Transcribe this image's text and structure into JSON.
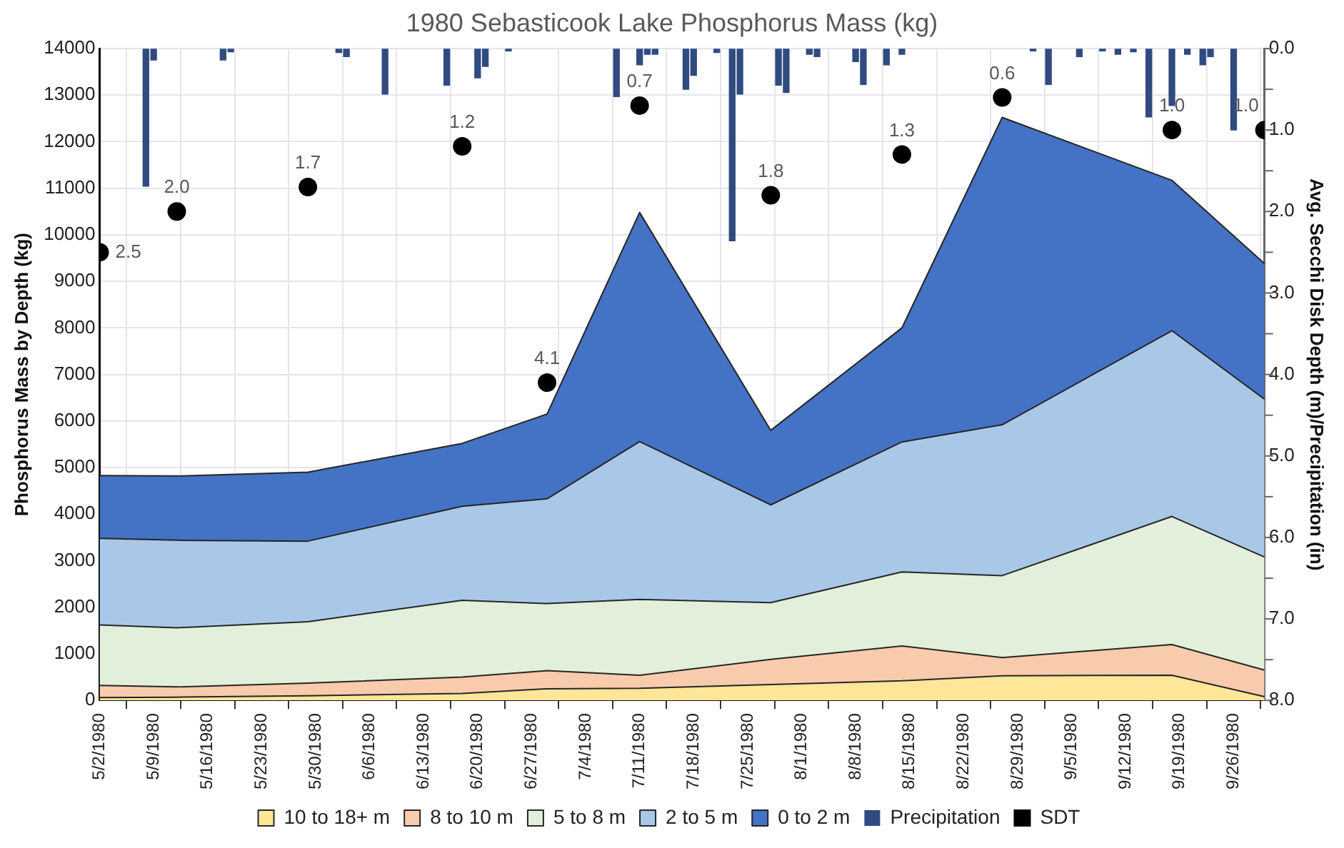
{
  "chart_data": {
    "type": "area",
    "title": "1980 Sebasticook Lake Phosphorus Mass (kg)",
    "ylabel": "Phosphorus Mass by Depth (kg)",
    "y2label": "Avg. Secchi Disk Depth (m)/Precipitation (in)",
    "x": [
      "1980-05-02",
      "1980-05-12",
      "1980-05-29",
      "1980-06-18",
      "1980-06-29",
      "1980-07-11",
      "1980-07-28",
      "1980-08-14",
      "1980-08-27",
      "1980-09-18",
      "1980-09-30"
    ],
    "stacked": true,
    "grid": true,
    "legend": "bottom",
    "xlim": [
      "1980-05-02",
      "1980-09-30"
    ],
    "xticks": [
      {
        "value": "1980-05-02",
        "label": "5/2/1980"
      },
      {
        "value": "1980-05-09",
        "label": "5/9/1980"
      },
      {
        "value": "1980-05-16",
        "label": "5/16/1980"
      },
      {
        "value": "1980-05-23",
        "label": "5/23/1980"
      },
      {
        "value": "1980-05-30",
        "label": "5/30/1980"
      },
      {
        "value": "1980-06-06",
        "label": "6/6/1980"
      },
      {
        "value": "1980-06-13",
        "label": "6/13/1980"
      },
      {
        "value": "1980-06-20",
        "label": "6/20/1980"
      },
      {
        "value": "1980-06-27",
        "label": "6/27/1980"
      },
      {
        "value": "1980-07-04",
        "label": "7/4/1980"
      },
      {
        "value": "1980-07-11",
        "label": "7/11/1980"
      },
      {
        "value": "1980-07-18",
        "label": "7/18/1980"
      },
      {
        "value": "1980-07-25",
        "label": "7/25/1980"
      },
      {
        "value": "1980-08-01",
        "label": "8/1/1980"
      },
      {
        "value": "1980-08-08",
        "label": "8/8/1980"
      },
      {
        "value": "1980-08-15",
        "label": "8/15/1980"
      },
      {
        "value": "1980-08-22",
        "label": "8/22/1980"
      },
      {
        "value": "1980-08-29",
        "label": "8/29/1980"
      },
      {
        "value": "1980-09-05",
        "label": "9/5/1980"
      },
      {
        "value": "1980-09-12",
        "label": "9/12/1980"
      },
      {
        "value": "1980-09-19",
        "label": "9/19/1980"
      },
      {
        "value": "1980-09-26",
        "label": "9/26/1980"
      }
    ],
    "ylim": [
      0,
      14000
    ],
    "yticks": [
      0,
      1000,
      2000,
      3000,
      4000,
      5000,
      6000,
      7000,
      8000,
      9000,
      10000,
      11000,
      12000,
      13000,
      14000
    ],
    "y2lim": [
      8,
      0
    ],
    "y2ticks": [
      {
        "value": 0,
        "label": "0.0"
      },
      {
        "value": 0.5,
        "label": null
      },
      {
        "value": 1,
        "label": "1.0"
      },
      {
        "value": 1.5,
        "label": null
      },
      {
        "value": 2,
        "label": "2.0"
      },
      {
        "value": 2.5,
        "label": null
      },
      {
        "value": 3,
        "label": "3.0"
      },
      {
        "value": 3.5,
        "label": null
      },
      {
        "value": 4,
        "label": "4.0"
      },
      {
        "value": 4.5,
        "label": null
      },
      {
        "value": 5,
        "label": "5.0"
      },
      {
        "value": 5.5,
        "label": null
      },
      {
        "value": 6,
        "label": "6.0"
      },
      {
        "value": 6.5,
        "label": null
      },
      {
        "value": 7,
        "label": "7.0"
      },
      {
        "value": 7.5,
        "label": null
      },
      {
        "value": 8,
        "label": "8.0"
      }
    ],
    "series": [
      {
        "name": "10 to 18+ m",
        "color": "#ffe699",
        "values": [
          60,
          70,
          100,
          150,
          250,
          260,
          340,
          420,
          530,
          540,
          80
        ]
      },
      {
        "name": "8 to 10 m",
        "color": "#f8cbad",
        "values": [
          260,
          220,
          270,
          350,
          390,
          280,
          540,
          750,
          390,
          660,
          570
        ]
      },
      {
        "name": "5 to 8 m",
        "color": "#e2efda",
        "values": [
          1300,
          1270,
          1320,
          1650,
          1440,
          1630,
          1220,
          1590,
          1760,
          2750,
          2430
        ]
      },
      {
        "name": "2 to 5 m",
        "color": "#a9c8e8",
        "values": [
          1860,
          1880,
          1730,
          2020,
          2250,
          3390,
          2100,
          2790,
          3240,
          3990,
          3390
        ]
      },
      {
        "name": "0 to 2 m",
        "color": "#4472c4",
        "values": [
          1350,
          1380,
          1480,
          1350,
          1820,
          4920,
          1600,
          2450,
          6600,
          3230,
          2910
        ]
      },
      {
        "name": "Precipitation",
        "type": "bar",
        "axis": "y2",
        "color": "#2f4b80",
        "x": [
          "1980-05-08",
          "1980-05-09",
          "1980-05-18",
          "1980-05-19",
          "1980-06-02",
          "1980-06-03",
          "1980-06-08",
          "1980-06-16",
          "1980-06-20",
          "1980-06-21",
          "1980-06-24",
          "1980-07-08",
          "1980-07-11",
          "1980-07-12",
          "1980-07-13",
          "1980-07-17",
          "1980-07-18",
          "1980-07-21",
          "1980-07-23",
          "1980-07-24",
          "1980-07-29",
          "1980-07-30",
          "1980-08-02",
          "1980-08-03",
          "1980-08-08",
          "1980-08-09",
          "1980-08-12",
          "1980-08-14",
          "1980-08-31",
          "1980-09-02",
          "1980-09-06",
          "1980-09-09",
          "1980-09-11",
          "1980-09-13",
          "1980-09-15",
          "1980-09-18",
          "1980-09-20",
          "1980-09-22",
          "1980-09-23",
          "1980-09-26"
        ],
        "values": [
          1.69,
          0.14,
          0.14,
          0.04,
          0.05,
          0.1,
          0.56,
          0.45,
          0.36,
          0.22,
          0.03,
          0.59,
          0.2,
          0.07,
          0.07,
          0.5,
          0.33,
          0.05,
          2.36,
          0.56,
          0.45,
          0.54,
          0.07,
          0.1,
          0.16,
          0.44,
          0.2,
          0.07,
          0.03,
          0.44,
          0.1,
          0.03,
          0.07,
          0.04,
          0.84,
          0.7,
          0.07,
          0.2,
          0.1,
          1.0
        ]
      },
      {
        "name": "SDT",
        "type": "scatter",
        "axis": "y2",
        "color": "#000000",
        "marker": "circle",
        "values": [
          2.5,
          2.0,
          1.7,
          1.2,
          4.1,
          0.7,
          1.8,
          1.3,
          0.6,
          1.0,
          1.0
        ],
        "value_labels": [
          "2.5",
          "2.0",
          "1.7",
          "1.2",
          "4.1",
          "0.7",
          "1.8",
          "1.3",
          "0.6",
          "1.0",
          "1.0"
        ]
      }
    ]
  }
}
